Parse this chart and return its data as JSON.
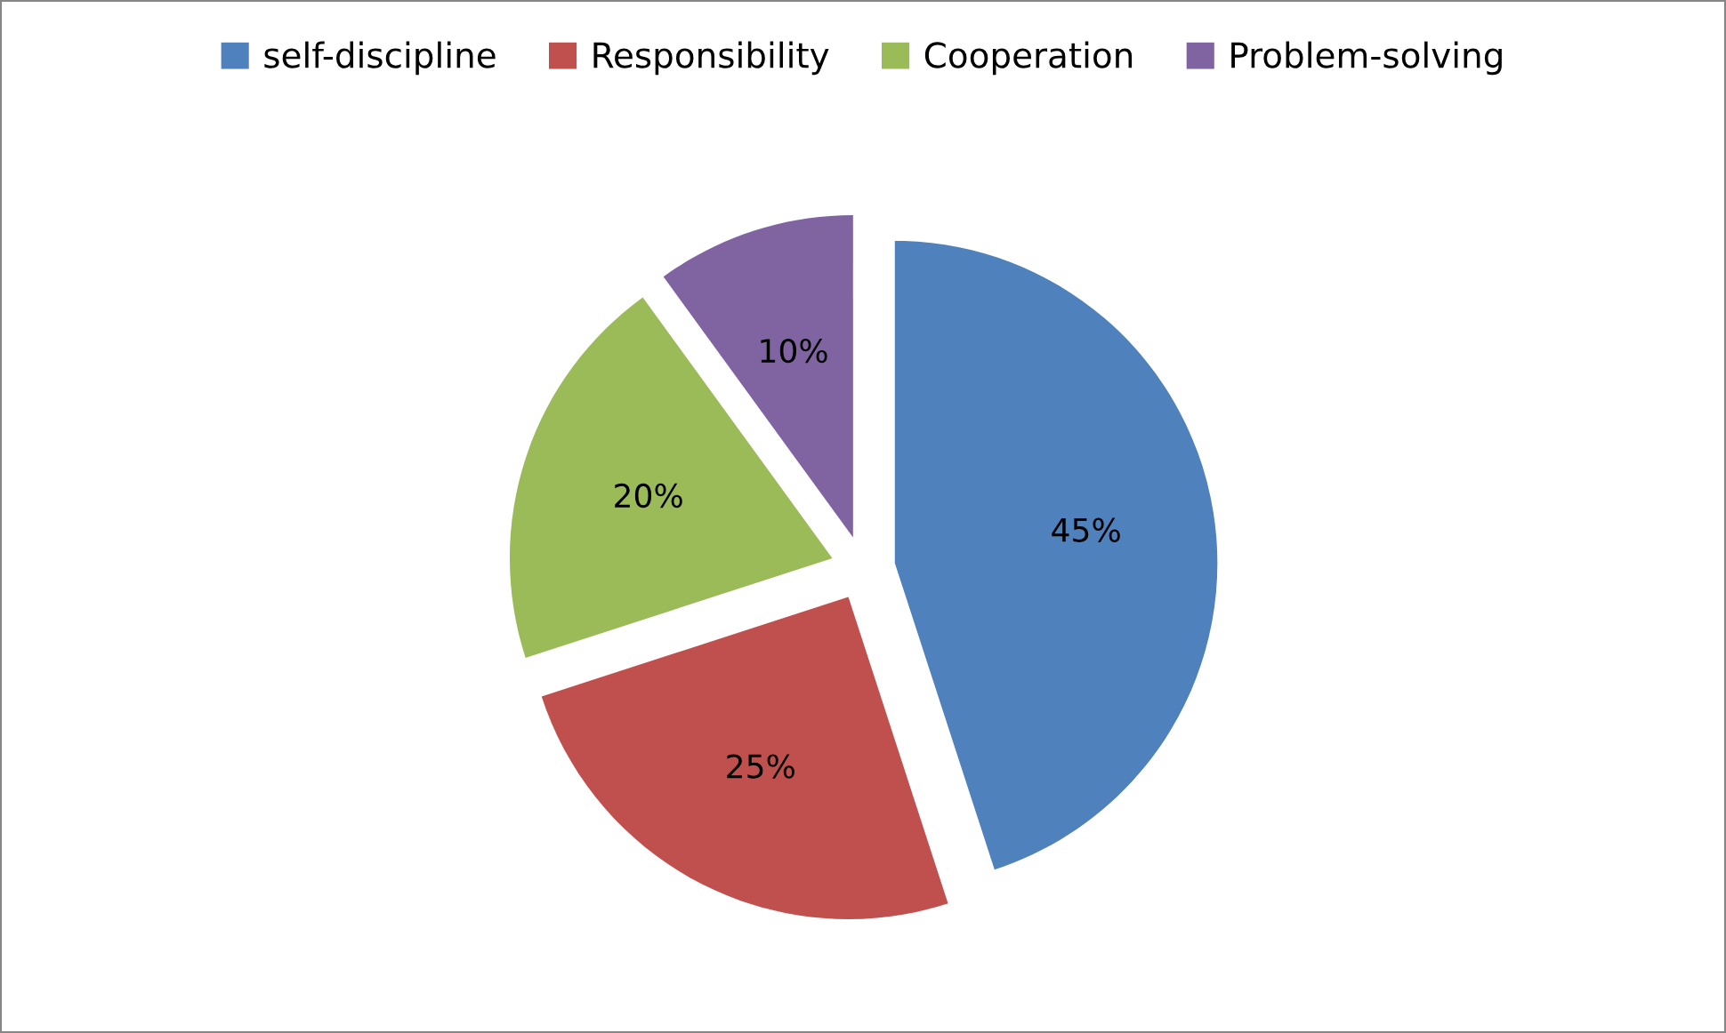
{
  "chart_data": {
    "type": "pie",
    "categories": [
      "self-discipline",
      "Responsibility",
      "Cooperation",
      "Problem-solving"
    ],
    "values": [
      45,
      25,
      20,
      10
    ],
    "colors": [
      "#4f81bd",
      "#c0504d",
      "#9bbb59",
      "#8064a2"
    ],
    "value_labels": [
      "45%",
      "25%",
      "20%",
      "10%"
    ],
    "legend": "top"
  }
}
